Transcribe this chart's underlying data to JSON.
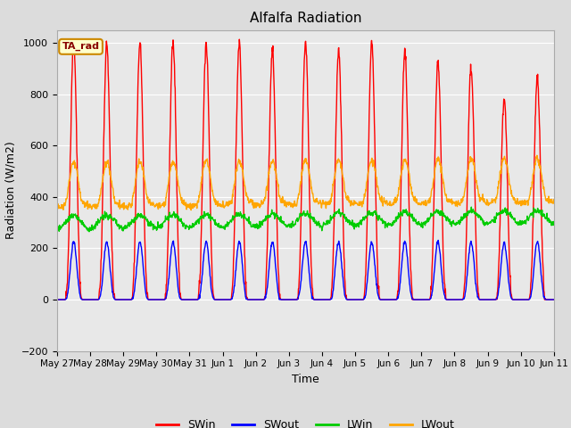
{
  "title": "Alfalfa Radiation",
  "ylabel": "Radiation (W/m2)",
  "xlabel": "Time",
  "ylim": [
    -200,
    1050
  ],
  "yticks": [
    -200,
    0,
    200,
    400,
    600,
    800,
    1000
  ],
  "background_color": "#dcdcdc",
  "plot_bg_color": "#e8e8e8",
  "legend_entries": [
    "SWin",
    "SWout",
    "LWin",
    "LWout"
  ],
  "legend_colors": [
    "#ff0000",
    "#0000ff",
    "#00cc00",
    "#ffa500"
  ],
  "annotation_text": "TA_rad",
  "annotation_color": "#cc8800",
  "n_days": 15,
  "x_tick_labels": [
    "May 27",
    "May 28",
    "May 29",
    "May 30",
    "May 31",
    "Jun 1",
    "Jun 2",
    "Jun 3",
    "Jun 4",
    "Jun 5",
    "Jun 6",
    "Jun 7",
    "Jun 8",
    "Jun 9",
    "Jun 10",
    "Jun 11"
  ],
  "SWin_peak": 1000,
  "SWout_peak": 225,
  "LWin_base": 300,
  "LWout_base": 375,
  "line_width": 1.0,
  "figsize": [
    6.4,
    4.8
  ],
  "dpi": 100
}
